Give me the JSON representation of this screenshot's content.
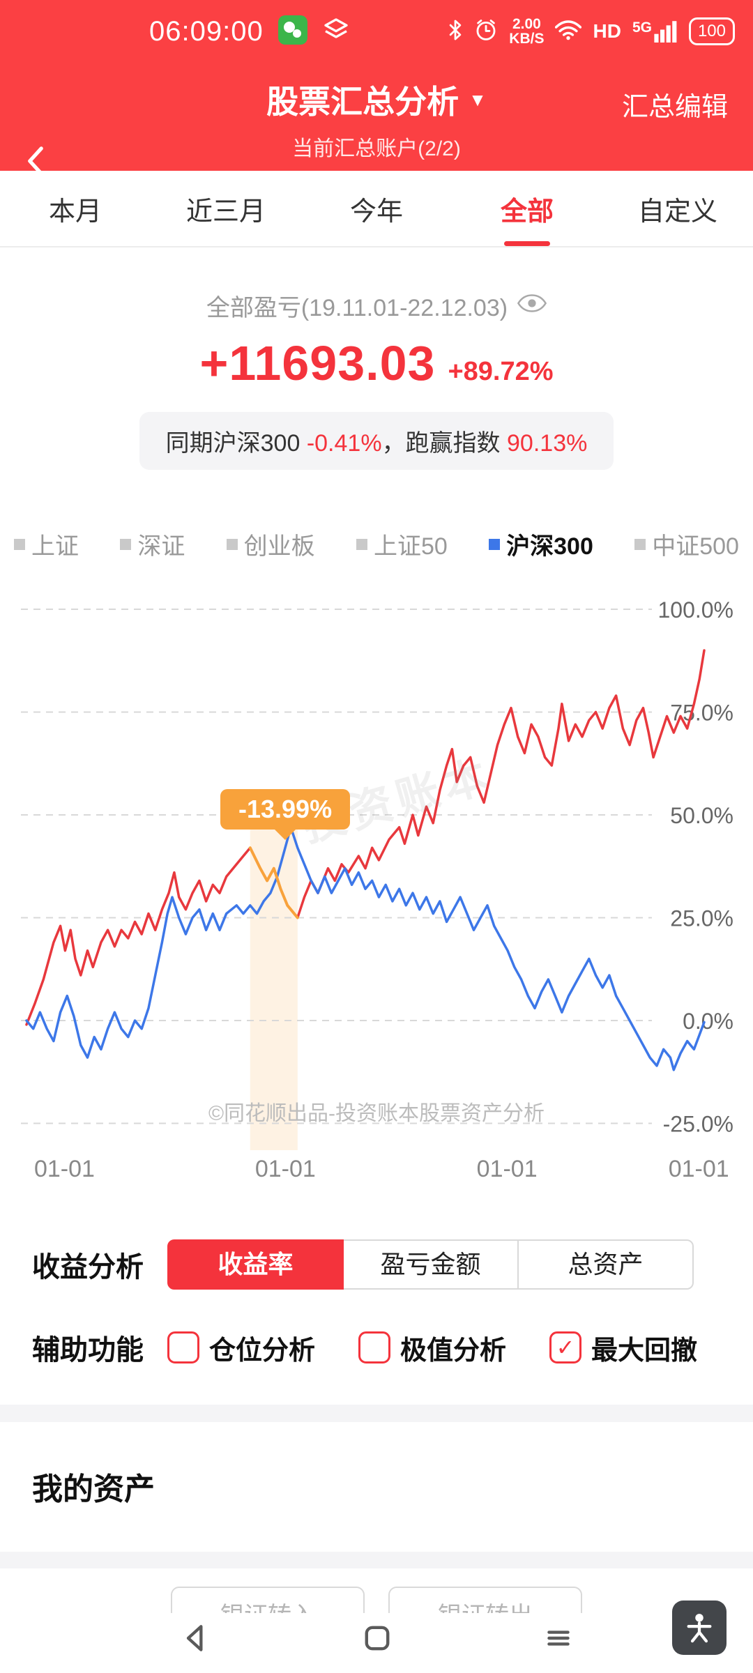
{
  "colors": {
    "accent": "#f4333c",
    "header_red": "#fb4043",
    "chart_red": "#e8383d",
    "chart_blue": "#3d77e8",
    "drawdown_orange": "#f8a23b"
  },
  "icons": {
    "dropdown": "▼",
    "check": "✓"
  },
  "status_bar": {
    "time": "06:09:00",
    "speed_value": "2.00",
    "speed_unit": "KB/S",
    "hd": "HD",
    "network": "5G",
    "battery": "100"
  },
  "header": {
    "title": "股票汇总分析",
    "subtitle": "当前汇总账户(2/2)",
    "edit_label": "汇总编辑"
  },
  "tabs": [
    {
      "label": "本月"
    },
    {
      "label": "近三月"
    },
    {
      "label": "今年"
    },
    {
      "label": "全部"
    },
    {
      "label": "自定义"
    }
  ],
  "summary": {
    "period_label": "全部盈亏(19.11.01-22.12.03)",
    "profit": "+11693.03",
    "profit_pct": "+89.72%",
    "benchmark_prefix": "同期沪深300 ",
    "benchmark_value": "-0.41%",
    "benchmark_mid": "，跑赢指数 ",
    "outperform_value": "90.13%"
  },
  "legend": [
    {
      "label": "上证"
    },
    {
      "label": "深证"
    },
    {
      "label": "创业板"
    },
    {
      "label": "上证50"
    },
    {
      "label": "沪深300"
    },
    {
      "label": "中证500"
    }
  ],
  "chart_data": {
    "type": "line",
    "ylim": [
      -25,
      100
    ],
    "grid": "dashed",
    "legend_position": "top",
    "y_ticks": [
      {
        "label": "100.0%",
        "value": 100
      },
      {
        "label": "75.0%",
        "value": 75
      },
      {
        "label": "50.0%",
        "value": 50
      },
      {
        "label": "25.0%",
        "value": 25
      },
      {
        "label": "0.0%",
        "value": 0
      },
      {
        "label": "-25.0%",
        "value": -25
      }
    ],
    "x_ticks": [
      {
        "label": "01-01",
        "x": 0.056
      },
      {
        "label": "01-01",
        "x": 0.382
      },
      {
        "label": "01-01",
        "x": 0.709
      },
      {
        "label": "01-01",
        "x": 0.992
      }
    ],
    "series": [
      {
        "name": "收益率",
        "color": "#e8383d",
        "points": [
          [
            0,
            -1
          ],
          [
            0.012,
            4
          ],
          [
            0.025,
            10
          ],
          [
            0.04,
            19
          ],
          [
            0.05,
            23
          ],
          [
            0.057,
            17
          ],
          [
            0.065,
            22
          ],
          [
            0.072,
            15
          ],
          [
            0.08,
            11
          ],
          [
            0.09,
            17
          ],
          [
            0.098,
            13
          ],
          [
            0.11,
            19
          ],
          [
            0.12,
            22
          ],
          [
            0.13,
            18
          ],
          [
            0.14,
            22
          ],
          [
            0.15,
            20
          ],
          [
            0.16,
            24
          ],
          [
            0.17,
            21
          ],
          [
            0.18,
            26
          ],
          [
            0.19,
            22
          ],
          [
            0.2,
            27
          ],
          [
            0.21,
            31
          ],
          [
            0.218,
            36
          ],
          [
            0.225,
            30
          ],
          [
            0.235,
            27
          ],
          [
            0.245,
            31
          ],
          [
            0.255,
            34
          ],
          [
            0.265,
            29
          ],
          [
            0.275,
            33
          ],
          [
            0.285,
            31
          ],
          [
            0.295,
            35
          ],
          [
            0.31,
            38
          ],
          [
            0.32,
            40
          ],
          [
            0.33,
            42
          ],
          [
            0.345,
            37
          ],
          [
            0.355,
            34
          ],
          [
            0.365,
            37
          ],
          [
            0.375,
            32
          ],
          [
            0.385,
            28
          ],
          [
            0.4,
            25
          ],
          [
            0.41,
            30
          ],
          [
            0.42,
            34
          ],
          [
            0.43,
            31
          ],
          [
            0.445,
            37
          ],
          [
            0.455,
            34
          ],
          [
            0.465,
            38
          ],
          [
            0.475,
            36
          ],
          [
            0.49,
            40
          ],
          [
            0.5,
            37
          ],
          [
            0.51,
            42
          ],
          [
            0.52,
            39
          ],
          [
            0.535,
            44
          ],
          [
            0.55,
            47
          ],
          [
            0.558,
            43
          ],
          [
            0.57,
            50
          ],
          [
            0.578,
            45
          ],
          [
            0.59,
            52
          ],
          [
            0.6,
            48
          ],
          [
            0.61,
            56
          ],
          [
            0.62,
            62
          ],
          [
            0.628,
            66
          ],
          [
            0.635,
            58
          ],
          [
            0.645,
            62
          ],
          [
            0.655,
            64
          ],
          [
            0.665,
            57
          ],
          [
            0.675,
            53
          ],
          [
            0.685,
            60
          ],
          [
            0.695,
            67
          ],
          [
            0.705,
            72
          ],
          [
            0.715,
            76
          ],
          [
            0.725,
            69
          ],
          [
            0.735,
            65
          ],
          [
            0.745,
            72
          ],
          [
            0.755,
            69
          ],
          [
            0.765,
            64
          ],
          [
            0.775,
            62
          ],
          [
            0.785,
            71
          ],
          [
            0.79,
            77
          ],
          [
            0.8,
            68
          ],
          [
            0.81,
            72
          ],
          [
            0.82,
            69
          ],
          [
            0.83,
            73
          ],
          [
            0.84,
            75
          ],
          [
            0.85,
            71
          ],
          [
            0.86,
            76
          ],
          [
            0.87,
            79
          ],
          [
            0.88,
            71
          ],
          [
            0.89,
            67
          ],
          [
            0.9,
            73
          ],
          [
            0.91,
            76
          ],
          [
            0.918,
            70
          ],
          [
            0.925,
            64
          ],
          [
            0.935,
            69
          ],
          [
            0.945,
            74
          ],
          [
            0.955,
            70
          ],
          [
            0.965,
            74
          ],
          [
            0.975,
            71
          ],
          [
            0.985,
            77
          ],
          [
            0.993,
            83
          ],
          [
            1,
            90
          ]
        ]
      },
      {
        "name": "沪深300",
        "color": "#3d77e8",
        "points": [
          [
            0,
            0
          ],
          [
            0.01,
            -2
          ],
          [
            0.02,
            2
          ],
          [
            0.03,
            -2
          ],
          [
            0.04,
            -5
          ],
          [
            0.05,
            2
          ],
          [
            0.06,
            6
          ],
          [
            0.07,
            1
          ],
          [
            0.08,
            -6
          ],
          [
            0.09,
            -9
          ],
          [
            0.1,
            -4
          ],
          [
            0.11,
            -7
          ],
          [
            0.12,
            -2
          ],
          [
            0.13,
            2
          ],
          [
            0.14,
            -2
          ],
          [
            0.15,
            -4
          ],
          [
            0.16,
            0
          ],
          [
            0.17,
            -2
          ],
          [
            0.18,
            3
          ],
          [
            0.19,
            11
          ],
          [
            0.2,
            19
          ],
          [
            0.208,
            26
          ],
          [
            0.215,
            30
          ],
          [
            0.225,
            25
          ],
          [
            0.235,
            21
          ],
          [
            0.245,
            25
          ],
          [
            0.255,
            27
          ],
          [
            0.265,
            22
          ],
          [
            0.275,
            26
          ],
          [
            0.285,
            22
          ],
          [
            0.295,
            26
          ],
          [
            0.31,
            28
          ],
          [
            0.32,
            26
          ],
          [
            0.33,
            28
          ],
          [
            0.34,
            26
          ],
          [
            0.35,
            29
          ],
          [
            0.36,
            31
          ],
          [
            0.37,
            35
          ],
          [
            0.38,
            41
          ],
          [
            0.39,
            47
          ],
          [
            0.4,
            42
          ],
          [
            0.41,
            38
          ],
          [
            0.42,
            34
          ],
          [
            0.43,
            31
          ],
          [
            0.44,
            35
          ],
          [
            0.45,
            31
          ],
          [
            0.46,
            34
          ],
          [
            0.47,
            37
          ],
          [
            0.48,
            33
          ],
          [
            0.49,
            36
          ],
          [
            0.5,
            32
          ],
          [
            0.51,
            34
          ],
          [
            0.52,
            30
          ],
          [
            0.53,
            33
          ],
          [
            0.54,
            29
          ],
          [
            0.55,
            32
          ],
          [
            0.56,
            28
          ],
          [
            0.57,
            31
          ],
          [
            0.58,
            27
          ],
          [
            0.59,
            30
          ],
          [
            0.6,
            26
          ],
          [
            0.61,
            29
          ],
          [
            0.62,
            24
          ],
          [
            0.63,
            27
          ],
          [
            0.64,
            30
          ],
          [
            0.65,
            26
          ],
          [
            0.66,
            22
          ],
          [
            0.67,
            25
          ],
          [
            0.68,
            28
          ],
          [
            0.69,
            23
          ],
          [
            0.7,
            20
          ],
          [
            0.71,
            17
          ],
          [
            0.72,
            13
          ],
          [
            0.73,
            10
          ],
          [
            0.74,
            6
          ],
          [
            0.75,
            3
          ],
          [
            0.76,
            7
          ],
          [
            0.77,
            10
          ],
          [
            0.78,
            6
          ],
          [
            0.79,
            2
          ],
          [
            0.8,
            6
          ],
          [
            0.81,
            9
          ],
          [
            0.82,
            12
          ],
          [
            0.83,
            15
          ],
          [
            0.84,
            11
          ],
          [
            0.85,
            8
          ],
          [
            0.86,
            11
          ],
          [
            0.87,
            6
          ],
          [
            0.88,
            3
          ],
          [
            0.89,
            0
          ],
          [
            0.9,
            -3
          ],
          [
            0.91,
            -6
          ],
          [
            0.92,
            -9
          ],
          [
            0.93,
            -11
          ],
          [
            0.94,
            -7
          ],
          [
            0.95,
            -9
          ],
          [
            0.955,
            -12
          ],
          [
            0.965,
            -8
          ],
          [
            0.975,
            -5
          ],
          [
            0.985,
            -7
          ],
          [
            1,
            -0.4
          ]
        ]
      }
    ],
    "drawdown": {
      "label": "-13.99%",
      "x_start": 0.33,
      "x_end": 0.4,
      "color": "#f8a23b"
    },
    "watermark_center": "投资账本",
    "watermark_bottom": "©同花顺出品-投资账本股票资产分析"
  },
  "analysis": {
    "label": "收益分析",
    "segments": [
      {
        "label": "收益率"
      },
      {
        "label": "盈亏金额"
      },
      {
        "label": "总资产"
      }
    ]
  },
  "aux": {
    "label": "辅助功能",
    "options": [
      {
        "label": "仓位分析",
        "checked": false
      },
      {
        "label": "极值分析",
        "checked": false
      },
      {
        "label": "最大回撤",
        "checked": true
      }
    ]
  },
  "assets": {
    "title": "我的资产"
  },
  "bottom_buttons": [
    {
      "label": "银证转入"
    },
    {
      "label": "银证转出"
    }
  ]
}
